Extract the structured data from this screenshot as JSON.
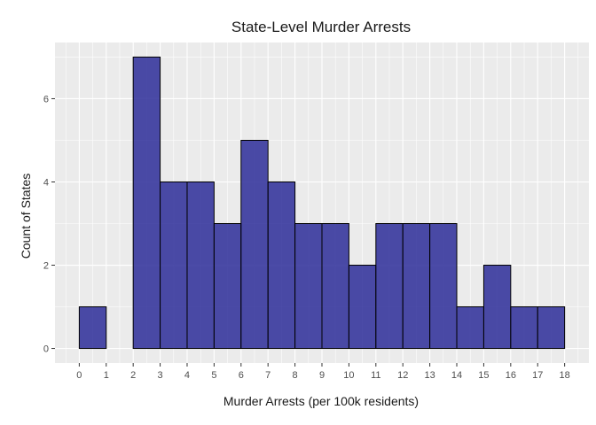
{
  "chart_data": {
    "type": "bar",
    "title": "State-Level Murder Arrests",
    "xlabel": "Murder Arrests (per 100k residents)",
    "ylabel": "Count of States",
    "bin_edges": [
      0,
      1,
      2,
      3,
      4,
      5,
      6,
      7,
      8,
      9,
      10,
      11,
      12,
      13,
      14,
      15,
      16,
      17,
      18
    ],
    "values": [
      1,
      0,
      7,
      4,
      4,
      3,
      5,
      4,
      3,
      3,
      2,
      3,
      3,
      3,
      1,
      2,
      1,
      1
    ],
    "x_ticks": [
      "0",
      "1",
      "2",
      "3",
      "4",
      "5",
      "6",
      "7",
      "8",
      "9",
      "10",
      "11",
      "12",
      "13",
      "14",
      "15",
      "16",
      "17",
      "18"
    ],
    "y_ticks": [
      "0",
      "2",
      "4",
      "6"
    ],
    "xlim": [
      -0.9,
      18.9
    ],
    "ylim": [
      -0.35,
      7.35
    ],
    "grid": true,
    "colors": {
      "panel_bg": "#ebebeb",
      "grid_major": "#ffffff",
      "bar_fill": "#2d2d99",
      "bar_outline": "#000000"
    }
  }
}
